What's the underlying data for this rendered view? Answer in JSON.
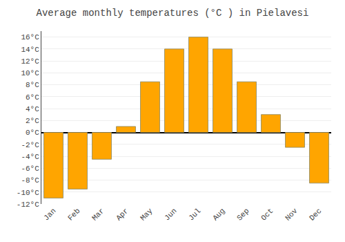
{
  "chart_data": {
    "type": "bar",
    "title": "Average monthly temperatures (°C ) in Pielavesi",
    "categories": [
      "Jan",
      "Feb",
      "Mar",
      "Apr",
      "May",
      "Jun",
      "Jul",
      "Aug",
      "Sep",
      "Oct",
      "Nov",
      "Dec"
    ],
    "values": [
      -11,
      -9.5,
      -4.5,
      1,
      8.5,
      14,
      16,
      14,
      8.5,
      3,
      -2.5,
      -8.5
    ],
    "color": "#FFA500",
    "ylim": [
      -12,
      17
    ],
    "yticks": [
      {
        "value": -12,
        "label": "-12°C"
      },
      {
        "value": -10,
        "label": "-10°C"
      },
      {
        "value": -8,
        "label": "-8°C"
      },
      {
        "value": -6,
        "label": "-6°C"
      },
      {
        "value": -4,
        "label": "-4°C"
      },
      {
        "value": -2,
        "label": "-2°C"
      },
      {
        "value": 0,
        "label": "0°C"
      },
      {
        "value": 2,
        "label": "2°C"
      },
      {
        "value": 4,
        "label": "4°C"
      },
      {
        "value": 6,
        "label": "6°C"
      },
      {
        "value": 8,
        "label": "8°C"
      },
      {
        "value": 10,
        "label": "10°C"
      },
      {
        "value": 12,
        "label": "12°C"
      },
      {
        "value": 14,
        "label": "14°C"
      },
      {
        "value": 16,
        "label": "16°C"
      }
    ],
    "grid": true
  }
}
